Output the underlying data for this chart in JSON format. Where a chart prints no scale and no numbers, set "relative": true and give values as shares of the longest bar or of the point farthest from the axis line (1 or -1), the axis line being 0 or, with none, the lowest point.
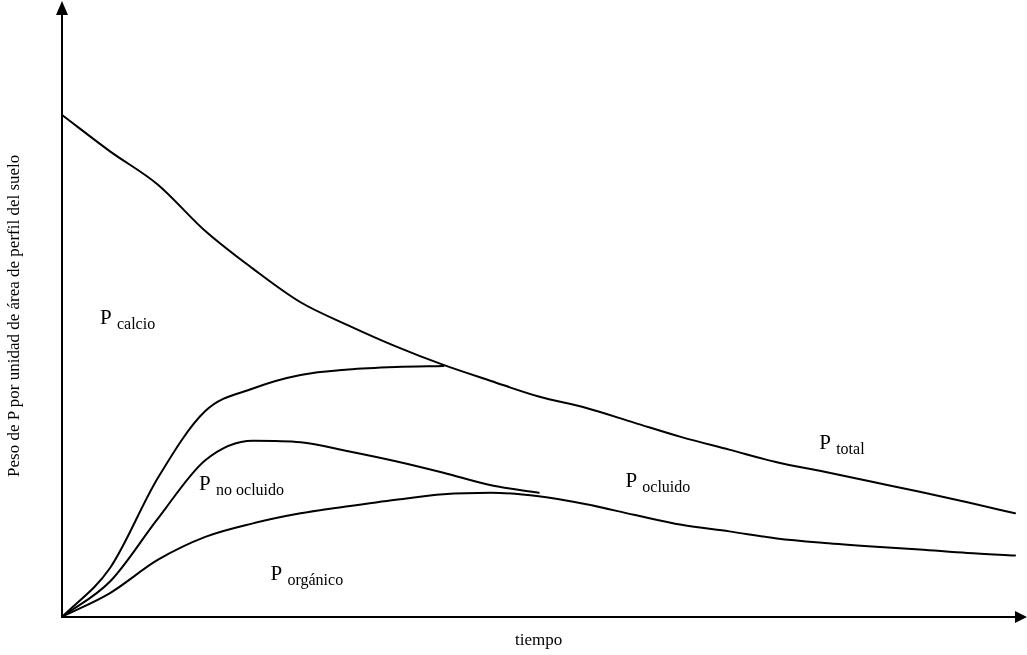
{
  "chart_data": {
    "type": "line",
    "xlabel": "tiempo",
    "ylabel": "Peso de P por unidad de área de perfil del suelo",
    "relative": true,
    "marker": "none",
    "line_style": "solid",
    "categories": [
      null,
      null,
      null,
      null,
      null,
      null,
      null,
      null,
      null,
      null,
      null,
      null,
      null,
      null,
      null,
      null,
      null,
      null,
      null,
      null,
      null
    ],
    "series": [
      {
        "color": "#000000",
        "values": [
          1.0,
          0.928,
          0.862,
          0.769,
          0.694,
          0.627,
          0.581,
          0.539,
          0.502,
          0.47,
          0.439,
          0.416,
          0.387,
          0.358,
          0.333,
          0.308,
          0.289,
          0.269,
          0.249,
          0.228,
          0.206
        ]
      },
      {
        "color": "#000000",
        "values": [
          0,
          0.097,
          0.276,
          0.41,
          0.455,
          0.482,
          0.493,
          0.498,
          0.5,
          null,
          null,
          null,
          null,
          null,
          null,
          null,
          null,
          null,
          null,
          null,
          null
        ]
      },
      {
        "color": "#000000",
        "values": [
          0,
          0.07,
          0.195,
          0.312,
          0.351,
          0.348,
          0.33,
          0.31,
          0.287,
          0.262,
          0.247,
          null,
          null,
          null,
          null,
          null,
          null,
          null,
          null,
          null,
          null
        ]
      },
      {
        "color": "#000000",
        "values": [
          0,
          0.047,
          0.113,
          0.159,
          0.186,
          0.206,
          0.22,
          0.233,
          0.244,
          0.247,
          0.24,
          0.224,
          0.203,
          0.183,
          0.17,
          0.156,
          0.147,
          0.14,
          0.134,
          0.127,
          0.122
        ]
      }
    ],
    "annotations": [
      "P $_{calcio}$",
      "P $_{no ocluido}$",
      "P $_{orgánico}$",
      "P $_{ocluido}$",
      "P $_{total}$"
    ]
  }
}
